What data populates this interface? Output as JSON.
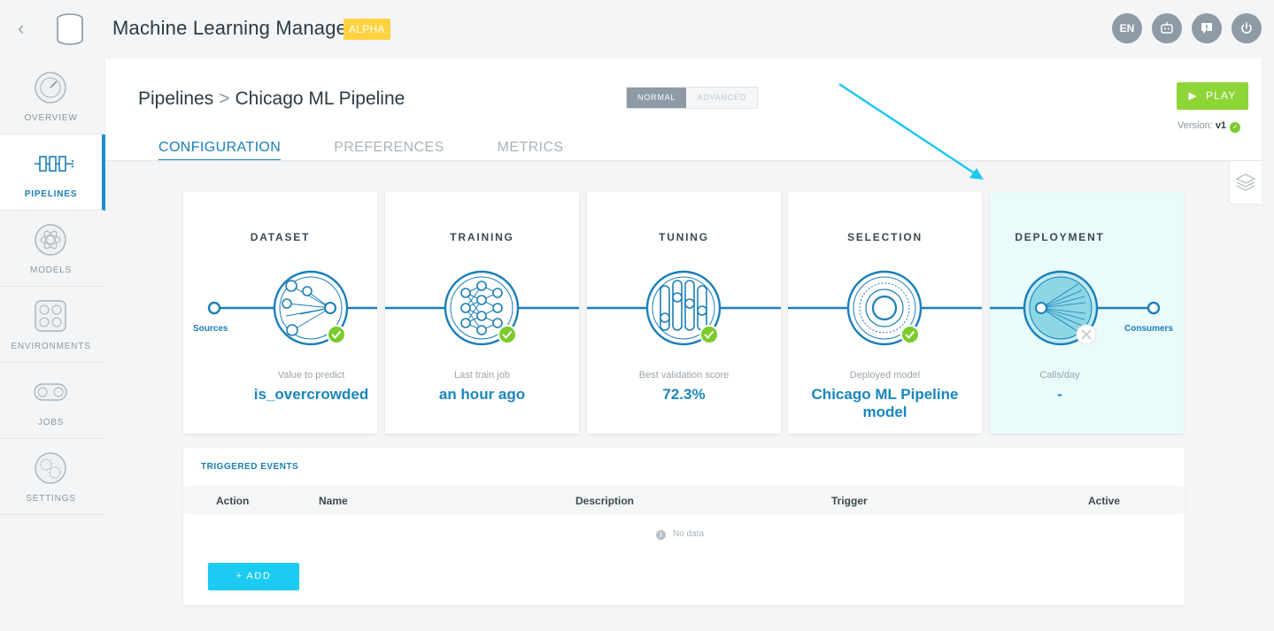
{
  "app": {
    "title": "Machine Learning Manager",
    "badge": "ALPHA",
    "lang": "EN"
  },
  "sidebar": {
    "items": [
      {
        "label": "OVERVIEW"
      },
      {
        "label": "PIPELINES"
      },
      {
        "label": "MODELS"
      },
      {
        "label": "ENVIRONMENTS"
      },
      {
        "label": "JOBS"
      },
      {
        "label": "SETTINGS"
      }
    ]
  },
  "header": {
    "crumb_root": "Pipelines",
    "crumb_sep": ">",
    "crumb_current": "Chicago ML Pipeline",
    "mode_normal": "NORMAL",
    "mode_advanced": "ADVANCED",
    "play_label": "PLAY",
    "play_icon": "▶",
    "version_label": "Version:",
    "version_value": "v1"
  },
  "tabs": [
    {
      "label": "CONFIGURATION"
    },
    {
      "label": "PREFERENCES"
    },
    {
      "label": "METRICS"
    }
  ],
  "steps": [
    {
      "title": "DATASET",
      "sub": "Value to predict",
      "value": "is_overcrowded",
      "status": "ok"
    },
    {
      "title": "TRAINING",
      "sub": "Last train job",
      "value": "an hour ago",
      "status": "ok"
    },
    {
      "title": "TUNING",
      "sub": "Best validation score",
      "value": "72.3%",
      "status": "ok"
    },
    {
      "title": "SELECTION",
      "sub": "Deployed model",
      "value": "Chicago ML Pipeline model",
      "status": "ok"
    },
    {
      "title": "DEPLOYMENT",
      "sub": "Calls/day",
      "value": "-",
      "status": "not-configured"
    }
  ],
  "flow": {
    "start_label": "Sources",
    "end_label": "Consumers"
  },
  "events": {
    "title": "TRIGGERED EVENTS",
    "columns": [
      "Action",
      "Name",
      "Description",
      "Trigger",
      "Active"
    ],
    "empty_text": "No data",
    "add_label": "+  ADD"
  },
  "colors": {
    "accent": "#1b7fb8",
    "ok": "#7ccb2e",
    "play": "#8ed537",
    "add": "#1ccbf1",
    "badge": "#ffd23f"
  }
}
